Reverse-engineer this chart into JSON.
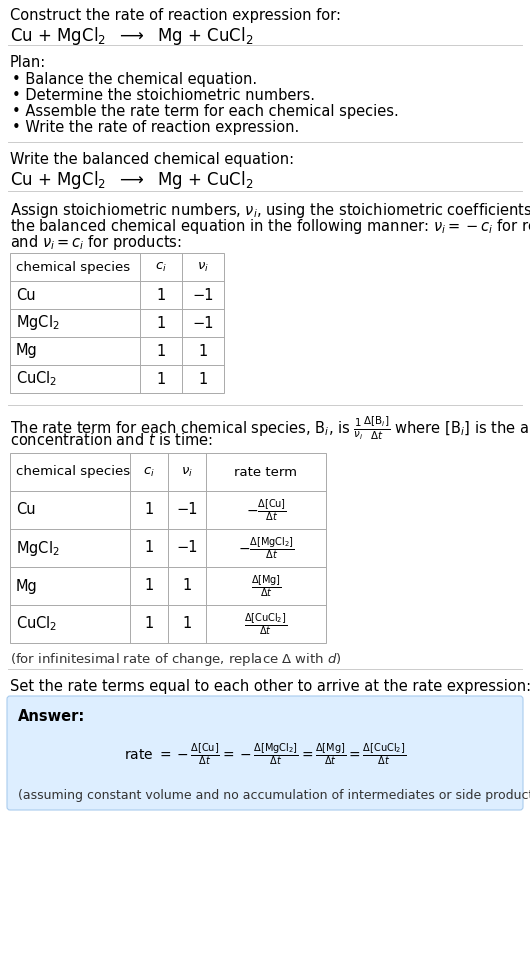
{
  "bg_color": "#ffffff",
  "text_color": "#000000",
  "table_line_color": "#aaaaaa",
  "answer_box_color": "#ddeeff",
  "answer_box_edge": "#aaccee",
  "title_line1": "Construct the rate of reaction expression for:",
  "plan_header": "Plan:",
  "plan_bullets": [
    "• Balance the chemical equation.",
    "• Determine the stoichiometric numbers.",
    "• Assemble the rate term for each chemical species.",
    "• Write the rate of reaction expression."
  ],
  "balanced_header": "Write the balanced chemical equation:",
  "stoich_intro_lines": [
    "Assign stoichiometric numbers, $\\nu_i$, using the stoichiometric coefficients, $c_i$, from",
    "the balanced chemical equation in the following manner: $\\nu_i = -c_i$ for reactants",
    "and $\\nu_i = c_i$ for products:"
  ],
  "table1_headers": [
    "chemical species",
    "$c_i$",
    "$\\nu_i$"
  ],
  "table1_rows": [
    [
      "Cu",
      "1",
      "−1"
    ],
    [
      "MgCl$_2$",
      "1",
      "−1"
    ],
    [
      "Mg",
      "1",
      "1"
    ],
    [
      "CuCl$_2$",
      "1",
      "1"
    ]
  ],
  "rate_intro_lines": [
    "The rate term for each chemical species, B$_i$, is $\\frac{1}{\\nu_i}\\frac{\\Delta[\\mathrm{B}_i]}{\\Delta t}$ where [B$_i$] is the amount",
    "concentration and $t$ is time:"
  ],
  "table2_headers": [
    "chemical species",
    "$c_i$",
    "$\\nu_i$",
    "rate term"
  ],
  "table2_rows": [
    [
      "Cu",
      "1",
      "−1",
      "$-\\frac{\\Delta[\\mathrm{Cu}]}{\\Delta t}$"
    ],
    [
      "MgCl$_2$",
      "1",
      "−1",
      "$-\\frac{\\Delta[\\mathrm{MgCl_2}]}{\\Delta t}$"
    ],
    [
      "Mg",
      "1",
      "1",
      "$\\frac{\\Delta[\\mathrm{Mg}]}{\\Delta t}$"
    ],
    [
      "CuCl$_2$",
      "1",
      "1",
      "$\\frac{\\Delta[\\mathrm{CuCl_2}]}{\\Delta t}$"
    ]
  ],
  "infinitesimal_note": "(for infinitesimal rate of change, replace Δ with $d$)",
  "rate_expr_header": "Set the rate terms equal to each other to arrive at the rate expression:",
  "answer_label": "Answer:",
  "rate_expression": "rate $= -\\frac{\\Delta[\\mathrm{Cu}]}{\\Delta t} = -\\frac{\\Delta[\\mathrm{MgCl_2}]}{\\Delta t} = \\frac{\\Delta[\\mathrm{Mg}]}{\\Delta t} = \\frac{\\Delta[\\mathrm{CuCl_2}]}{\\Delta t}$",
  "assumption_note": "(assuming constant volume and no accumulation of intermediates or side products)"
}
